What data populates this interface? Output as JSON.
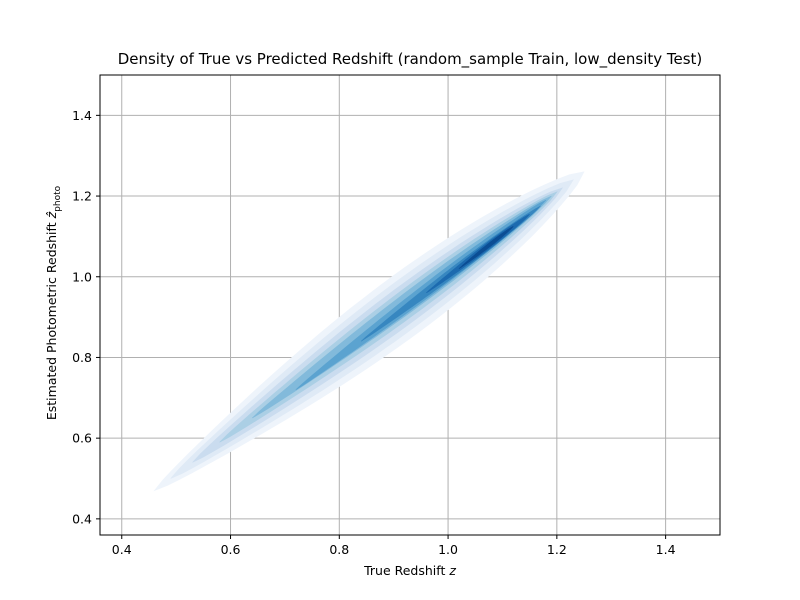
{
  "chart_data": {
    "type": "kde-density",
    "title": "Density of True vs Predicted Redshift (random_sample Train, low_density Test)",
    "xlabel": "True Redshift z",
    "xlabel_parts": {
      "text": "True Redshift ",
      "var": "z"
    },
    "ylabel": "Estimated Photometric Redshift ẑphoto",
    "ylabel_parts": {
      "text": "Estimated Photometric Redshift ",
      "var": "ẑ",
      "sub": "photo"
    },
    "xlim": [
      0.36,
      1.5
    ],
    "ylim": [
      0.36,
      1.5
    ],
    "xticks": [
      0.4,
      0.6,
      0.8,
      1.0,
      1.2,
      1.4
    ],
    "yticks": [
      0.4,
      0.6,
      0.8,
      1.0,
      1.2,
      1.4
    ],
    "xtick_labels": [
      "0.4",
      "0.6",
      "0.8",
      "1.0",
      "1.2",
      "1.4"
    ],
    "ytick_labels": [
      "0.4",
      "0.6",
      "0.8",
      "1.0",
      "1.2",
      "1.4"
    ],
    "grid": true,
    "colormap": "Blues",
    "density_ridge": {
      "x_range": [
        0.46,
        1.25
      ],
      "y_range": [
        0.47,
        1.26
      ],
      "peak_near": [
        1.08,
        1.08
      ]
    },
    "contour_levels": [
      {
        "level": 1,
        "x0": 0.46,
        "y0": 0.47,
        "x1": 1.25,
        "y1": 1.26,
        "width": 0.07,
        "color": "#eef4fb"
      },
      {
        "level": 2,
        "x0": 0.49,
        "y0": 0.5,
        "x1": 1.23,
        "y1": 1.24,
        "width": 0.055,
        "color": "#dfeaf6"
      },
      {
        "level": 3,
        "x0": 0.53,
        "y0": 0.54,
        "x1": 1.21,
        "y1": 1.22,
        "width": 0.042,
        "color": "#cadcef"
      },
      {
        "level": 4,
        "x0": 0.58,
        "y0": 0.59,
        "x1": 1.2,
        "y1": 1.21,
        "width": 0.031,
        "color": "#abcfe5"
      },
      {
        "level": 5,
        "x0": 0.64,
        "y0": 0.65,
        "x1": 1.19,
        "y1": 1.2,
        "width": 0.022,
        "color": "#82badb"
      },
      {
        "level": 6,
        "x0": 0.72,
        "y0": 0.72,
        "x1": 1.18,
        "y1": 1.19,
        "width": 0.015,
        "color": "#5ba3d0"
      },
      {
        "level": 7,
        "x0": 0.84,
        "y0": 0.84,
        "x1": 1.17,
        "y1": 1.175,
        "width": 0.01,
        "color": "#3787c0"
      },
      {
        "level": 8,
        "x0": 0.96,
        "y0": 0.96,
        "x1": 1.15,
        "y1": 1.155,
        "width": 0.007,
        "color": "#1c6aaf"
      },
      {
        "level": 9,
        "x0": 1.02,
        "y0": 1.02,
        "x1": 1.12,
        "y1": 1.125,
        "width": 0.004,
        "color": "#0b4d94"
      }
    ]
  }
}
